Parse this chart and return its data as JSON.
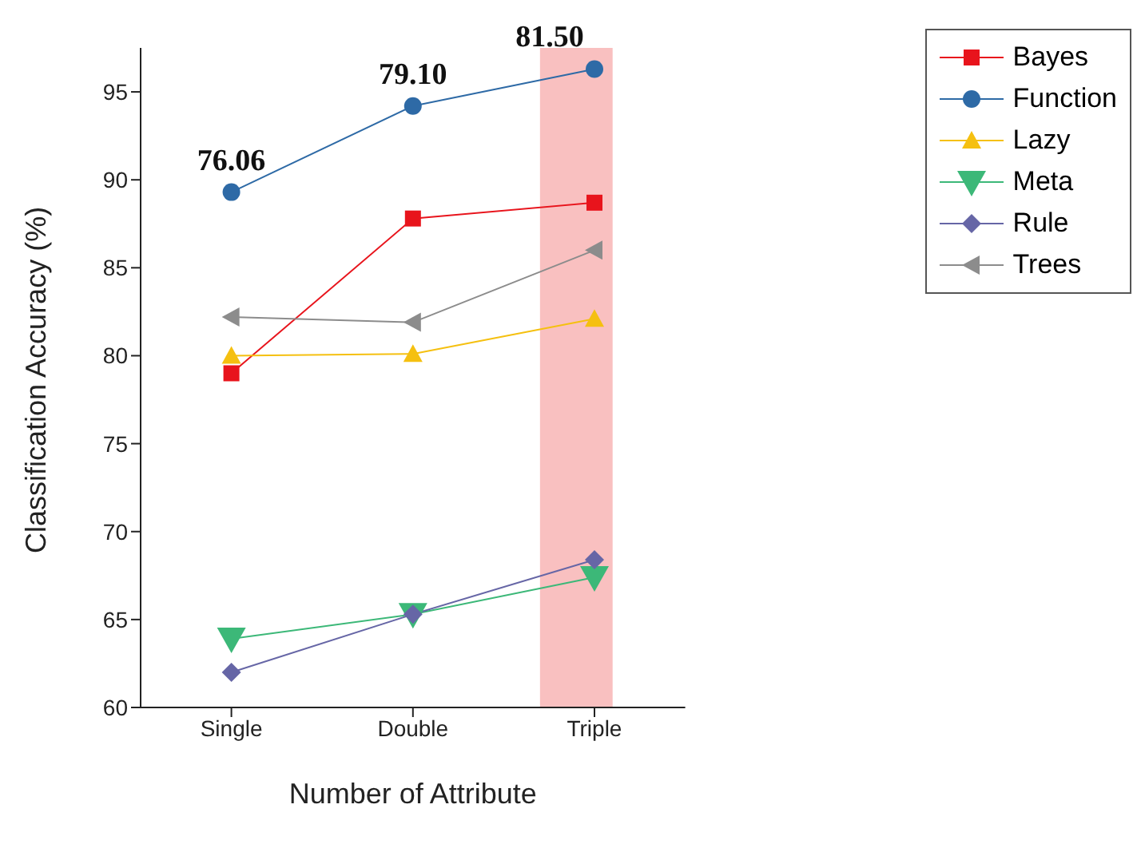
{
  "chart_data": {
    "type": "line",
    "xlabel": "Number of Attribute",
    "ylabel": "Classification Accuracy (%)",
    "categories": [
      "Single",
      "Double",
      "Triple"
    ],
    "ylim": [
      60,
      97.5
    ],
    "yticks": [
      60,
      65,
      70,
      75,
      80,
      85,
      90,
      95
    ],
    "series": [
      {
        "name": "Bayes",
        "color": "#e8141c",
        "marker": "square",
        "values": [
          79.0,
          87.8,
          88.7
        ]
      },
      {
        "name": "Function",
        "color": "#2e6aa6",
        "marker": "circle",
        "values": [
          89.3,
          94.2,
          96.3
        ]
      },
      {
        "name": "Lazy",
        "color": "#f5c010",
        "marker": "triangle",
        "values": [
          80.0,
          80.1,
          82.1
        ]
      },
      {
        "name": "Meta",
        "color": "#3cb878",
        "marker": "triangle-down",
        "values": [
          63.9,
          65.3,
          67.4
        ]
      },
      {
        "name": "Rule",
        "color": "#6666a6",
        "marker": "diamond",
        "values": [
          62.0,
          65.3,
          68.4
        ]
      },
      {
        "name": "Trees",
        "color": "#8c8c8c",
        "marker": "triangle-left",
        "values": [
          82.2,
          81.9,
          86.0
        ]
      }
    ],
    "bands": [
      {
        "axis": "x",
        "from": "Triple",
        "to": "Triple",
        "color": "#f9c0c0"
      }
    ],
    "annotations": [
      {
        "text": "76.06",
        "x": "Single",
        "y": 89.3
      },
      {
        "text": "79.10",
        "x": "Double",
        "y": 94.2
      },
      {
        "text": "81.50",
        "x": "Triple",
        "y": 96.3
      }
    ],
    "legend": "top right",
    "grid": false
  }
}
